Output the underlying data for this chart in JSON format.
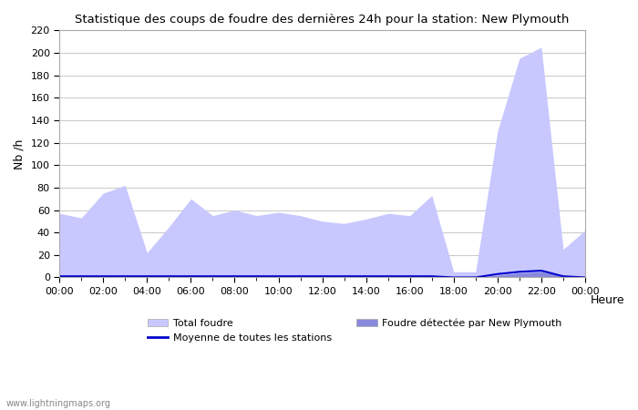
{
  "title": "Statistique des coups de foudre des dernières 24h pour la station: New Plymouth",
  "xlabel": "Heure",
  "ylabel": "Nb /h",
  "watermark": "www.lightningmaps.org",
  "ylim": [
    0,
    220
  ],
  "yticks": [
    0,
    20,
    40,
    60,
    80,
    100,
    120,
    140,
    160,
    180,
    200,
    220
  ],
  "xtick_labels": [
    "00:00",
    "02:00",
    "04:00",
    "06:00",
    "08:00",
    "10:00",
    "12:00",
    "14:00",
    "16:00",
    "18:00",
    "20:00",
    "22:00",
    "00:00"
  ],
  "color_total": "#c8c8ff",
  "color_detected": "#8888dd",
  "color_moyenne": "#0000cc",
  "bg_color": "#ffffff",
  "grid_color": "#cccccc",
  "total_foudre": [
    57,
    53,
    75,
    82,
    22,
    45,
    70,
    55,
    60,
    55,
    58,
    55,
    50,
    48,
    52,
    57,
    55,
    73,
    5,
    5,
    130,
    195,
    205,
    25,
    42
  ],
  "detected_foudre": [
    0,
    0,
    0,
    0,
    0,
    0,
    0,
    0,
    0,
    0,
    0,
    0,
    0,
    0,
    0,
    0,
    0,
    0,
    0,
    0,
    2,
    4,
    5,
    1,
    0
  ],
  "moyenne": [
    1,
    1,
    1,
    1,
    1,
    1,
    1,
    1,
    1,
    1,
    1,
    1,
    1,
    1,
    1,
    1,
    1,
    1,
    0,
    0,
    3,
    5,
    6,
    1,
    0
  ]
}
